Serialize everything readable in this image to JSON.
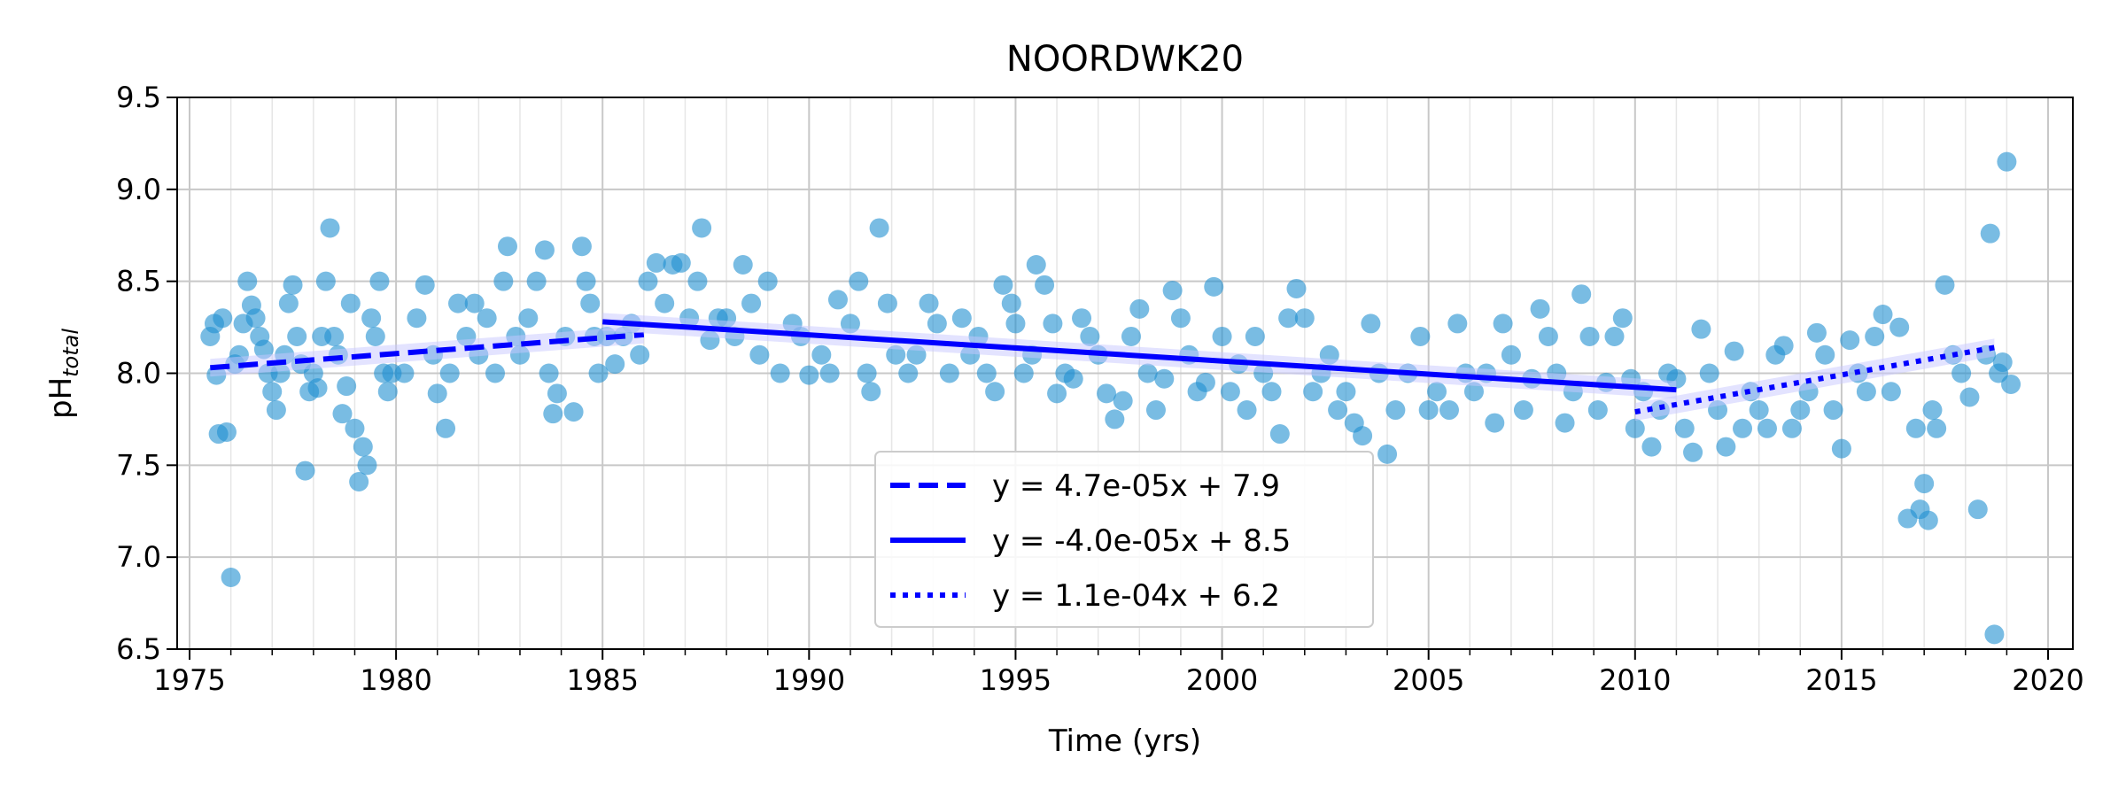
{
  "chart_data": {
    "type": "scatter",
    "title": "NOORDWK20",
    "xlabel": "Time (yrs)",
    "ylabel_main": "pH",
    "ylabel_sub": "total",
    "xlim": [
      1974.7,
      2020.6
    ],
    "ylim": [
      6.5,
      9.5
    ],
    "x_ticks": [
      "1975",
      "1980",
      "1985",
      "1990",
      "1995",
      "2000",
      "2005",
      "2010",
      "2015",
      "2020"
    ],
    "y_ticks": [
      "6.5",
      "7.0",
      "7.5",
      "8.0",
      "8.5",
      "9.0",
      "9.5"
    ],
    "grid": true,
    "legend_position": "bottom-center",
    "colors": {
      "points": "#1f8fd0",
      "fit": "#0000ff",
      "band": "#c8c8ff"
    },
    "points": [
      [
        1975.5,
        8.2
      ],
      [
        1975.6,
        8.27
      ],
      [
        1975.65,
        7.99
      ],
      [
        1975.7,
        7.67
      ],
      [
        1975.9,
        7.68
      ],
      [
        1976.0,
        6.89
      ],
      [
        1975.8,
        8.3
      ],
      [
        1976.1,
        8.05
      ],
      [
        1976.2,
        8.1
      ],
      [
        1976.3,
        8.27
      ],
      [
        1976.4,
        8.5
      ],
      [
        1976.5,
        8.37
      ],
      [
        1976.6,
        8.3
      ],
      [
        1976.7,
        8.2
      ],
      [
        1976.8,
        8.13
      ],
      [
        1976.9,
        8.0
      ],
      [
        1977.0,
        7.9
      ],
      [
        1977.1,
        7.8
      ],
      [
        1977.2,
        8.0
      ],
      [
        1977.3,
        8.1
      ],
      [
        1977.4,
        8.38
      ],
      [
        1977.5,
        8.48
      ],
      [
        1977.6,
        8.2
      ],
      [
        1977.7,
        8.05
      ],
      [
        1977.8,
        7.47
      ],
      [
        1977.9,
        7.9
      ],
      [
        1978.0,
        8.0
      ],
      [
        1978.1,
        7.92
      ],
      [
        1978.2,
        8.2
      ],
      [
        1978.3,
        8.5
      ],
      [
        1978.4,
        8.79
      ],
      [
        1978.5,
        8.2
      ],
      [
        1978.6,
        8.1
      ],
      [
        1978.7,
        7.78
      ],
      [
        1978.8,
        7.93
      ],
      [
        1978.9,
        8.38
      ],
      [
        1979.0,
        7.7
      ],
      [
        1979.1,
        7.41
      ],
      [
        1979.2,
        7.6
      ],
      [
        1979.3,
        7.5
      ],
      [
        1979.4,
        8.3
      ],
      [
        1979.5,
        8.2
      ],
      [
        1979.6,
        8.5
      ],
      [
        1979.7,
        8.0
      ],
      [
        1979.8,
        7.9
      ],
      [
        1979.9,
        8.0
      ],
      [
        1980.2,
        8.0
      ],
      [
        1980.5,
        8.3
      ],
      [
        1980.7,
        8.48
      ],
      [
        1980.9,
        8.1
      ],
      [
        1981.0,
        7.89
      ],
      [
        1981.2,
        7.7
      ],
      [
        1981.3,
        8.0
      ],
      [
        1981.5,
        8.38
      ],
      [
        1981.7,
        8.2
      ],
      [
        1981.9,
        8.38
      ],
      [
        1982.0,
        8.1
      ],
      [
        1982.2,
        8.3
      ],
      [
        1982.4,
        8.0
      ],
      [
        1982.6,
        8.5
      ],
      [
        1982.7,
        8.69
      ],
      [
        1982.9,
        8.2
      ],
      [
        1983.0,
        8.1
      ],
      [
        1983.2,
        8.3
      ],
      [
        1983.4,
        8.5
      ],
      [
        1983.6,
        8.67
      ],
      [
        1983.7,
        8.0
      ],
      [
        1983.8,
        7.78
      ],
      [
        1983.9,
        7.89
      ],
      [
        1984.1,
        8.2
      ],
      [
        1984.3,
        7.79
      ],
      [
        1984.5,
        8.69
      ],
      [
        1984.6,
        8.5
      ],
      [
        1984.7,
        8.38
      ],
      [
        1984.8,
        8.2
      ],
      [
        1984.9,
        8.0
      ],
      [
        1985.1,
        8.2
      ],
      [
        1985.3,
        8.05
      ],
      [
        1985.5,
        8.2
      ],
      [
        1985.7,
        8.27
      ],
      [
        1985.9,
        8.1
      ],
      [
        1986.1,
        8.5
      ],
      [
        1986.3,
        8.6
      ],
      [
        1986.5,
        8.38
      ],
      [
        1986.7,
        8.59
      ],
      [
        1986.9,
        8.6
      ],
      [
        1987.1,
        8.3
      ],
      [
        1987.3,
        8.5
      ],
      [
        1987.4,
        8.79
      ],
      [
        1987.6,
        8.18
      ],
      [
        1987.8,
        8.3
      ],
      [
        1988.0,
        8.3
      ],
      [
        1988.2,
        8.2
      ],
      [
        1988.4,
        8.59
      ],
      [
        1988.6,
        8.38
      ],
      [
        1988.8,
        8.1
      ],
      [
        1989.0,
        8.5
      ],
      [
        1989.3,
        8.0
      ],
      [
        1989.6,
        8.27
      ],
      [
        1989.8,
        8.2
      ],
      [
        1990.0,
        7.99
      ],
      [
        1990.3,
        8.1
      ],
      [
        1990.5,
        8.0
      ],
      [
        1990.7,
        8.4
      ],
      [
        1991.0,
        8.27
      ],
      [
        1991.2,
        8.5
      ],
      [
        1991.4,
        8.0
      ],
      [
        1991.5,
        7.9
      ],
      [
        1991.7,
        8.79
      ],
      [
        1991.9,
        8.38
      ],
      [
        1992.1,
        8.1
      ],
      [
        1992.4,
        8.0
      ],
      [
        1992.6,
        8.1
      ],
      [
        1992.9,
        8.38
      ],
      [
        1993.1,
        8.27
      ],
      [
        1993.4,
        8.0
      ],
      [
        1993.7,
        8.3
      ],
      [
        1993.9,
        8.1
      ],
      [
        1994.1,
        8.2
      ],
      [
        1994.3,
        8.0
      ],
      [
        1994.5,
        7.9
      ],
      [
        1994.7,
        8.48
      ],
      [
        1994.9,
        8.38
      ],
      [
        1995.0,
        8.27
      ],
      [
        1995.2,
        8.0
      ],
      [
        1995.4,
        8.1
      ],
      [
        1995.5,
        8.59
      ],
      [
        1995.7,
        8.48
      ],
      [
        1995.9,
        8.27
      ],
      [
        1996.0,
        7.89
      ],
      [
        1996.2,
        8.0
      ],
      [
        1996.4,
        7.97
      ],
      [
        1996.6,
        8.3
      ],
      [
        1996.8,
        8.2
      ],
      [
        1997.0,
        8.1
      ],
      [
        1997.2,
        7.89
      ],
      [
        1997.4,
        7.75
      ],
      [
        1997.6,
        7.85
      ],
      [
        1997.8,
        8.2
      ],
      [
        1998.0,
        8.35
      ],
      [
        1998.2,
        8.0
      ],
      [
        1998.4,
        7.8
      ],
      [
        1998.6,
        7.97
      ],
      [
        1998.8,
        8.45
      ],
      [
        1999.0,
        8.3
      ],
      [
        1999.2,
        8.1
      ],
      [
        1999.4,
        7.9
      ],
      [
        1999.6,
        7.95
      ],
      [
        1999.8,
        8.47
      ],
      [
        2000.0,
        8.2
      ],
      [
        2000.2,
        7.9
      ],
      [
        2000.4,
        8.05
      ],
      [
        2000.6,
        7.8
      ],
      [
        2000.8,
        8.2
      ],
      [
        2001.0,
        8.0
      ],
      [
        2001.2,
        7.9
      ],
      [
        2001.4,
        7.67
      ],
      [
        2001.6,
        8.3
      ],
      [
        2001.8,
        8.46
      ],
      [
        2002.0,
        8.3
      ],
      [
        2002.2,
        7.9
      ],
      [
        2002.4,
        8.0
      ],
      [
        2002.6,
        8.1
      ],
      [
        2002.8,
        7.8
      ],
      [
        2003.0,
        7.9
      ],
      [
        2003.2,
        7.73
      ],
      [
        2003.4,
        7.66
      ],
      [
        2003.6,
        8.27
      ],
      [
        2003.8,
        8.0
      ],
      [
        2004.0,
        7.56
      ],
      [
        2004.2,
        7.8
      ],
      [
        2004.5,
        8.0
      ],
      [
        2004.8,
        8.2
      ],
      [
        2005.0,
        7.8
      ],
      [
        2005.2,
        7.9
      ],
      [
        2005.5,
        7.8
      ],
      [
        2005.7,
        8.27
      ],
      [
        2005.9,
        8.0
      ],
      [
        2006.1,
        7.9
      ],
      [
        2006.4,
        8.0
      ],
      [
        2006.6,
        7.73
      ],
      [
        2006.8,
        8.27
      ],
      [
        2007.0,
        8.1
      ],
      [
        2007.3,
        7.8
      ],
      [
        2007.5,
        7.97
      ],
      [
        2007.7,
        8.35
      ],
      [
        2007.9,
        8.2
      ],
      [
        2008.1,
        8.0
      ],
      [
        2008.3,
        7.73
      ],
      [
        2008.5,
        7.9
      ],
      [
        2008.7,
        8.43
      ],
      [
        2008.9,
        8.2
      ],
      [
        2009.1,
        7.8
      ],
      [
        2009.3,
        7.95
      ],
      [
        2009.5,
        8.2
      ],
      [
        2009.7,
        8.3
      ],
      [
        2009.9,
        7.97
      ],
      [
        2010.0,
        7.7
      ],
      [
        2010.2,
        7.9
      ],
      [
        2010.4,
        7.6
      ],
      [
        2010.6,
        7.8
      ],
      [
        2010.8,
        8.0
      ],
      [
        2011.0,
        7.97
      ],
      [
        2011.2,
        7.7
      ],
      [
        2011.4,
        7.57
      ],
      [
        2011.6,
        8.24
      ],
      [
        2011.8,
        8.0
      ],
      [
        2012.0,
        7.8
      ],
      [
        2012.2,
        7.6
      ],
      [
        2012.4,
        8.12
      ],
      [
        2012.6,
        7.7
      ],
      [
        2012.8,
        7.9
      ],
      [
        2013.0,
        7.8
      ],
      [
        2013.2,
        7.7
      ],
      [
        2013.4,
        8.1
      ],
      [
        2013.6,
        8.15
      ],
      [
        2013.8,
        7.7
      ],
      [
        2014.0,
        7.8
      ],
      [
        2014.2,
        7.9
      ],
      [
        2014.4,
        8.22
      ],
      [
        2014.6,
        8.1
      ],
      [
        2014.8,
        7.8
      ],
      [
        2015.0,
        7.59
      ],
      [
        2015.2,
        8.18
      ],
      [
        2015.4,
        8.0
      ],
      [
        2015.6,
        7.9
      ],
      [
        2015.8,
        8.2
      ],
      [
        2016.0,
        8.32
      ],
      [
        2016.2,
        7.9
      ],
      [
        2016.4,
        8.25
      ],
      [
        2016.6,
        7.21
      ],
      [
        2016.8,
        7.7
      ],
      [
        2016.9,
        7.26
      ],
      [
        2017.0,
        7.4
      ],
      [
        2017.1,
        7.2
      ],
      [
        2017.2,
        7.8
      ],
      [
        2017.3,
        7.7
      ],
      [
        2017.5,
        8.48
      ],
      [
        2017.7,
        8.1
      ],
      [
        2017.9,
        8.0
      ],
      [
        2018.1,
        7.87
      ],
      [
        2018.3,
        7.26
      ],
      [
        2018.5,
        8.1
      ],
      [
        2018.6,
        8.76
      ],
      [
        2018.7,
        6.58
      ],
      [
        2018.8,
        8.0
      ],
      [
        2018.9,
        8.06
      ],
      [
        2019.0,
        9.15
      ],
      [
        2019.1,
        7.94
      ]
    ],
    "series": [
      {
        "name": "y = 4.7e-05x + 7.9",
        "style": "dashed",
        "x": [
          1975.5,
          1986.0
        ],
        "y": [
          8.03,
          8.21
        ]
      },
      {
        "name": "y = -4.0e-05x + 8.5",
        "style": "solid",
        "x": [
          1985.0,
          2011.0
        ],
        "y": [
          8.28,
          7.91
        ]
      },
      {
        "name": "y = 1.1e-04x + 6.2",
        "style": "dotted",
        "x": [
          2010.0,
          2018.7
        ],
        "y": [
          7.79,
          8.14
        ]
      }
    ]
  }
}
